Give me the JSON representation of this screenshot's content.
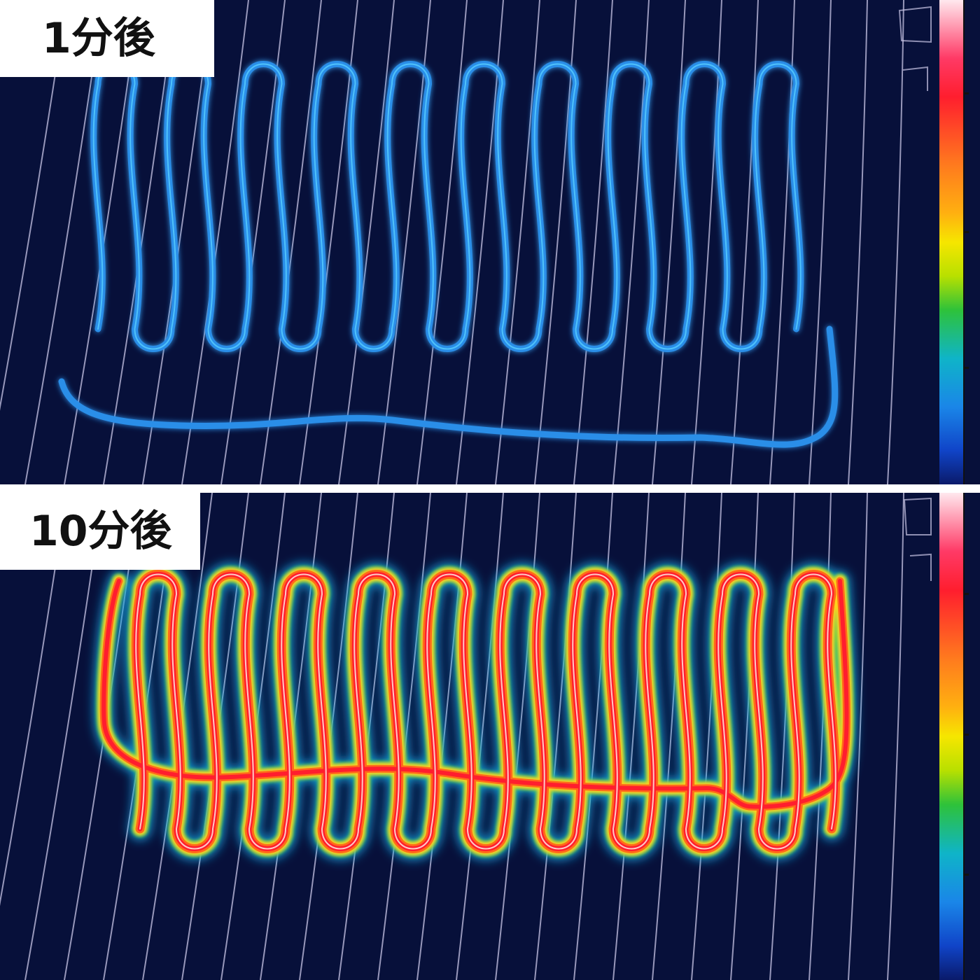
{
  "panels": [
    {
      "label": "1分後",
      "state": "low-heat"
    },
    {
      "label": "10分後",
      "state": "high-heat"
    }
  ],
  "colors": {
    "background": "#07103a",
    "grid_lines": "#c9c6e6",
    "cool_trace": "#2a8ee8",
    "hot_trace_core": "#ff2a2a",
    "hot_trace_glow": "#ffd21a"
  },
  "color_scale": [
    "#ffe8ee",
    "#ff1e2e",
    "#ffb010",
    "#f6e600",
    "#2ec23a",
    "#1a86e8",
    "#0a1a6a"
  ]
}
